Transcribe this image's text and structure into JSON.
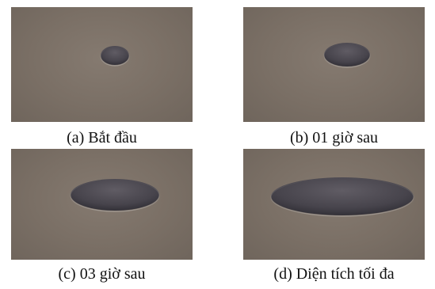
{
  "panels": [
    {
      "caption": "(a) Bắt đầu"
    },
    {
      "caption": "(b) 01 giờ sau"
    },
    {
      "caption": "(c) 03 giờ sau"
    },
    {
      "caption": "(d) Diện tích tối đa"
    }
  ],
  "colors": {
    "background_surface": "#7a6f65",
    "blob_light": "#5b5860",
    "blob_dark": "#3b3940",
    "caption_text": "#111111"
  }
}
